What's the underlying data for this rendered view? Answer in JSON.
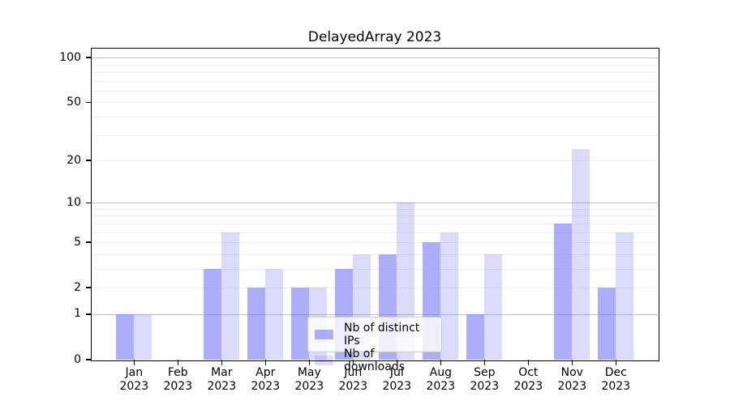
{
  "chart_data": {
    "type": "bar",
    "title": "DelayedArray 2023",
    "categories": [
      {
        "month": "Jan",
        "year": "2023"
      },
      {
        "month": "Feb",
        "year": "2023"
      },
      {
        "month": "Mar",
        "year": "2023"
      },
      {
        "month": "Apr",
        "year": "2023"
      },
      {
        "month": "May",
        "year": "2023"
      },
      {
        "month": "Jun",
        "year": "2023"
      },
      {
        "month": "Jul",
        "year": "2023"
      },
      {
        "month": "Aug",
        "year": "2023"
      },
      {
        "month": "Sep",
        "year": "2023"
      },
      {
        "month": "Oct",
        "year": "2023"
      },
      {
        "month": "Nov",
        "year": "2023"
      },
      {
        "month": "Dec",
        "year": "2023"
      }
    ],
    "series": [
      {
        "name": "Nb of distinct IPs",
        "values": [
          1,
          0,
          3,
          2,
          2,
          3,
          4,
          5,
          1,
          0,
          7,
          2
        ],
        "color": "rgba(122,125,245,0.62)",
        "color_hex": "#acaef9"
      },
      {
        "name": "Nb of downloads",
        "values": [
          1,
          0,
          6,
          3,
          2,
          4,
          10,
          6,
          4,
          0,
          24,
          6
        ],
        "color": "rgba(122,125,245,0.27)",
        "color_hex": "#dbdcfc"
      }
    ],
    "yscale": "log1p",
    "yticks": [
      0,
      1,
      2,
      5,
      10,
      20,
      50,
      100
    ],
    "ylim": [
      0,
      116
    ],
    "xlabel": "",
    "ylabel": "",
    "grid": "horizontal",
    "legend_position": "lower center",
    "colors": {
      "background": "#ffffff",
      "axis": "#000000",
      "grid_minor": "#efefef",
      "grid_major": "#bdbdbd",
      "text": "#000000"
    }
  }
}
